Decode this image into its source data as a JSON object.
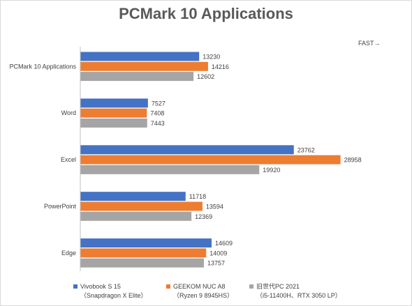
{
  "chart_data": {
    "type": "bar",
    "orientation": "horizontal",
    "title": "PCMark 10 Applications",
    "annotation": "FAST→",
    "categories": [
      "PCMark 10 Applications",
      "Word",
      "Excel",
      "PowerPoint",
      "Edge"
    ],
    "series": [
      {
        "name": "Vivobook S 15",
        "sub": "（Snapdragon X Elite）",
        "color": "#4472c4",
        "values": [
          13230,
          7527,
          23762,
          11718,
          14609
        ]
      },
      {
        "name": "GEEKOM NUC A8",
        "sub": "（Ryzen 9 8945HS）",
        "color": "#ed7d31",
        "values": [
          14216,
          7408,
          28958,
          13594,
          14009
        ]
      },
      {
        "name": "旧世代PC 2021",
        "sub": "（i5-11400H、RTX 3050 LP）",
        "color": "#a5a5a5",
        "values": [
          12602,
          7443,
          19920,
          12369,
          13757
        ]
      }
    ],
    "xlim": [
      0,
      30000
    ],
    "grid": false,
    "legend": "bottom"
  }
}
